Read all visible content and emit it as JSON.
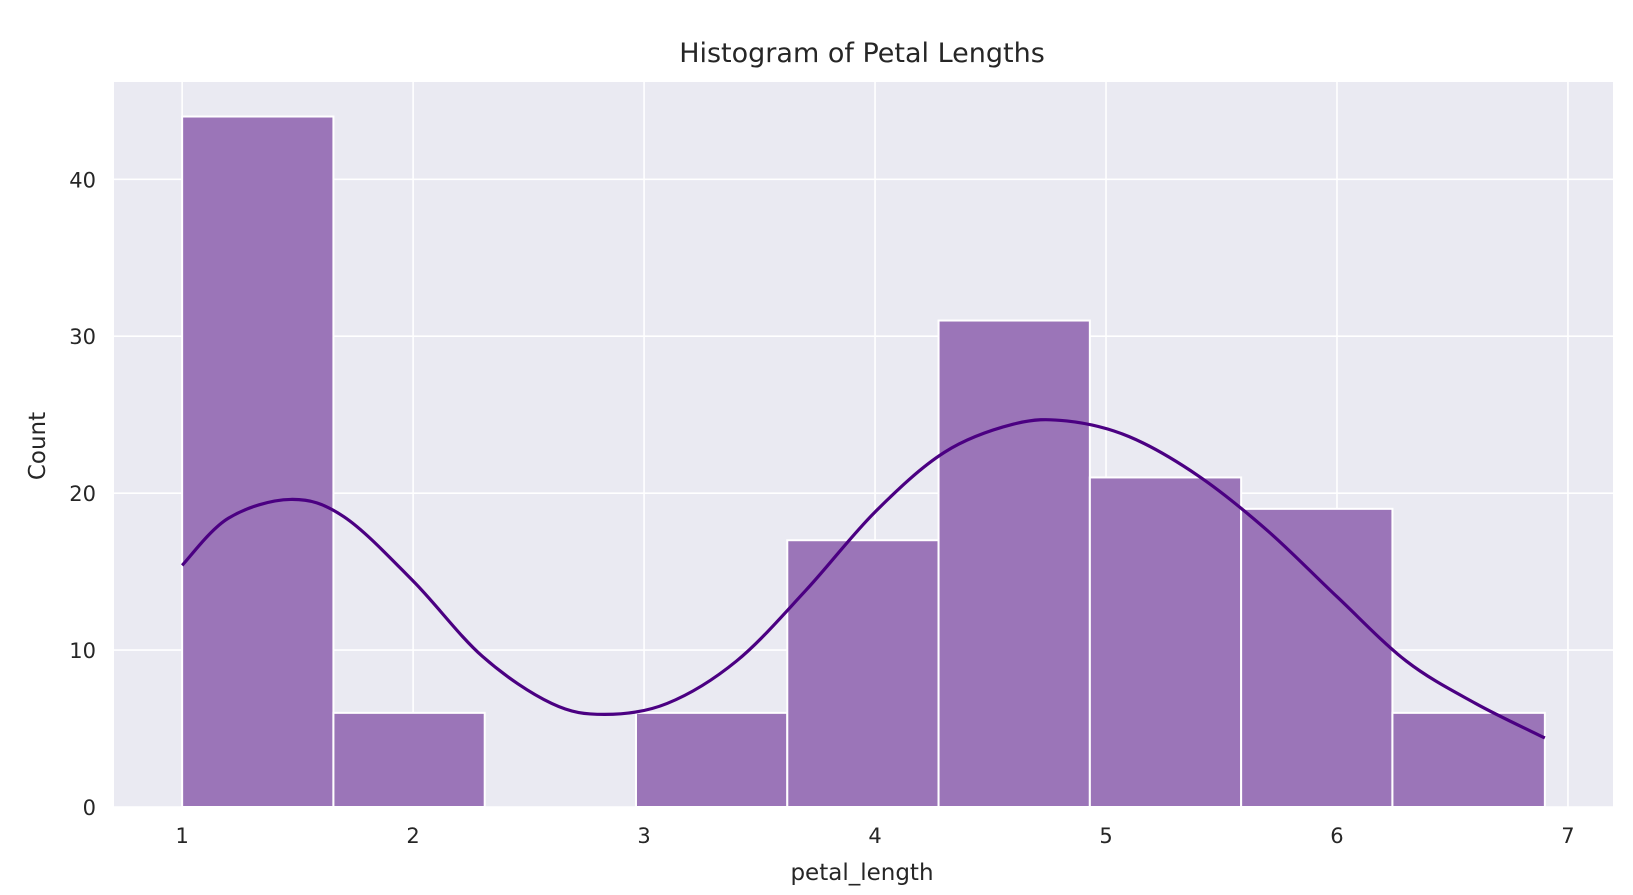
{
  "chart_data": {
    "type": "bar",
    "title": "Histogram of Petal Lengths",
    "xlabel": "petal_length",
    "ylabel": "Count",
    "xlim": [
      0.705,
      7.195
    ],
    "ylim": [
      0,
      46.2
    ],
    "xticks": [
      1,
      2,
      3,
      4,
      5,
      6,
      7
    ],
    "yticks": [
      0,
      10,
      20,
      30,
      40
    ],
    "bins": [
      {
        "x0": 1.0,
        "x1": 1.655,
        "count": 44
      },
      {
        "x0": 1.655,
        "x1": 2.31,
        "count": 6
      },
      {
        "x0": 2.31,
        "x1": 2.965,
        "count": 0
      },
      {
        "x0": 2.965,
        "x1": 3.62,
        "count": 6
      },
      {
        "x0": 3.62,
        "x1": 4.275,
        "count": 17
      },
      {
        "x0": 4.275,
        "x1": 4.93,
        "count": 31
      },
      {
        "x0": 4.93,
        "x1": 5.585,
        "count": 21
      },
      {
        "x0": 5.585,
        "x1": 6.24,
        "count": 19
      },
      {
        "x0": 6.24,
        "x1": 6.9,
        "count": 6
      }
    ],
    "kde": {
      "x": [
        1.0,
        1.2,
        1.47,
        1.7,
        2.0,
        2.3,
        2.6,
        2.83,
        3.1,
        3.4,
        3.7,
        4.0,
        4.3,
        4.6,
        4.83,
        5.1,
        5.4,
        5.7,
        6.0,
        6.3,
        6.6,
        6.9
      ],
      "y": [
        15.4,
        18.4,
        19.6,
        18.5,
        14.4,
        9.6,
        6.6,
        5.9,
        6.6,
        9.3,
        13.8,
        18.8,
        22.6,
        24.4,
        24.6,
        23.6,
        21.1,
        17.6,
        13.4,
        9.3,
        6.6,
        4.4
      ]
    },
    "grid": true,
    "legend": "none",
    "colors": {
      "background": "#eaeaf2",
      "bar": "#9b75b8",
      "bar_edge": "#ffffff",
      "kde": "#4b0082",
      "grid": "#ffffff",
      "text": "#262626"
    }
  }
}
